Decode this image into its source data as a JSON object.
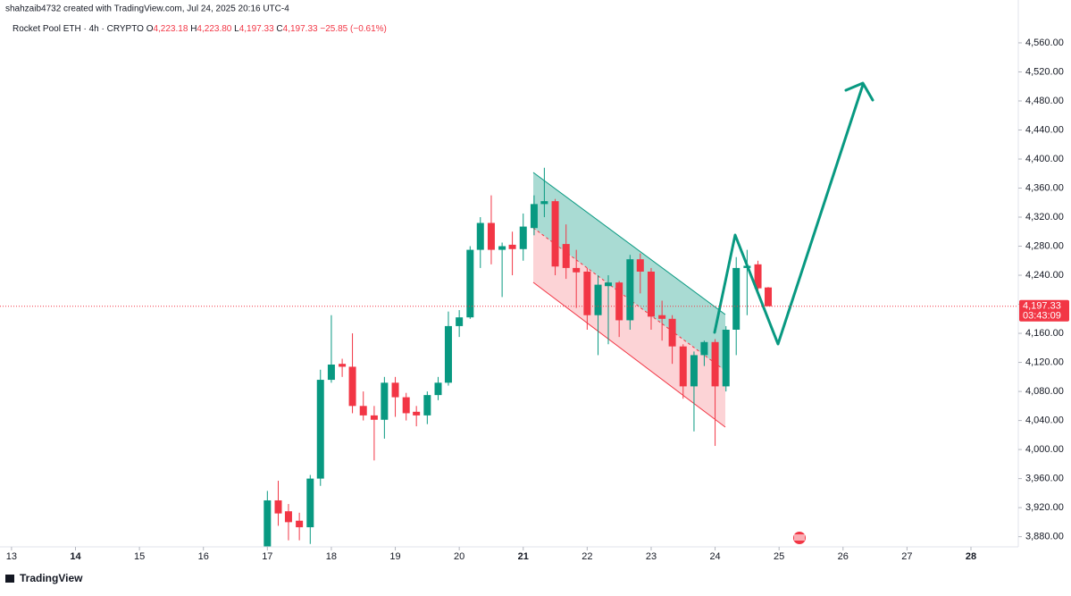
{
  "header": {
    "byline": "shahzaib4732 created with TradingView.com, Jul 24, 2025 20:16 UTC-4",
    "symbol": "Rocket Pool ETH · 4h · CRYPTO",
    "ohlc_legend": [
      {
        "key": "O",
        "label": "4,223.18"
      },
      {
        "key": "H",
        "label": "4,223.80"
      },
      {
        "key": "L",
        "label": "4,197.33"
      },
      {
        "key": "C",
        "label": "4,197.33"
      }
    ],
    "change": "−25.85 (−0.61%)"
  },
  "footer": {
    "brand": "TradingView"
  },
  "chart_data": {
    "type": "candlestick",
    "up_color": "#089981",
    "down_color": "#f23645",
    "xlim": [
      12.82,
      28.74
    ],
    "xticks": [
      13,
      14,
      15,
      16,
      17,
      18,
      19,
      20,
      21,
      22,
      23,
      24,
      25,
      26,
      27,
      28
    ],
    "ylim": [
      3866,
      4619
    ],
    "yticks": [
      {
        "value": 3880,
        "label": "3,880.00"
      },
      {
        "value": 3920,
        "label": "3,920.00"
      },
      {
        "value": 3960,
        "label": "3,960.00"
      },
      {
        "value": 4000,
        "label": "4,000.00"
      },
      {
        "value": 4040,
        "label": "4,040.00"
      },
      {
        "value": 4080,
        "label": "4,080.00"
      },
      {
        "value": 4120,
        "label": "4,120.00"
      },
      {
        "value": 4160,
        "label": "4,160.00"
      },
      {
        "value": 4200,
        "label": "4,200.00"
      },
      {
        "value": 4240,
        "label": "4,240.00"
      },
      {
        "value": 4280,
        "label": "4,280.00"
      },
      {
        "value": 4320,
        "label": "4,320.00"
      },
      {
        "value": 4360,
        "label": "4,360.00"
      },
      {
        "value": 4400,
        "label": "4,400.00"
      },
      {
        "value": 4440,
        "label": "4,440.00"
      },
      {
        "value": 4480,
        "label": "4,480.00"
      },
      {
        "value": 4520,
        "label": "4,520.00"
      },
      {
        "value": 4560,
        "label": "4,560.00"
      }
    ],
    "last_price": {
      "value": 4197.33,
      "label": "4,197.33"
    },
    "countdown": "03:43:09",
    "series": {
      "x": [
        17.0,
        17.17,
        17.33,
        17.5,
        17.67,
        17.83,
        18.0,
        18.17,
        18.33,
        18.5,
        18.67,
        18.83,
        19.0,
        19.17,
        19.33,
        19.5,
        19.67,
        19.83,
        20.0,
        20.17,
        20.33,
        20.5,
        20.67,
        20.83,
        21.0,
        21.17,
        21.33,
        21.5,
        21.67,
        21.83,
        22.0,
        22.17,
        22.33,
        22.5,
        22.67,
        22.83,
        23.0,
        23.17,
        23.33,
        23.5,
        23.67,
        23.83,
        24.0,
        24.17,
        24.33,
        24.5,
        24.67,
        24.83
      ],
      "open": [
        3866,
        3930,
        3915,
        3902,
        3893,
        3960,
        4096,
        4118,
        4114,
        4060,
        4047,
        4041,
        4092,
        4072,
        4052,
        4047,
        4075,
        4092,
        4170,
        4182,
        4275,
        4312,
        4275,
        4282,
        4276,
        4305,
        4338,
        4342,
        4283,
        4250,
        4245,
        4185,
        4225,
        4230,
        4178,
        4262,
        4245,
        4185,
        4180,
        4142,
        4087,
        4130,
        4148,
        4087,
        4165,
        4250,
        4255,
        4223.18
      ],
      "high": [
        3943,
        3957,
        3925,
        3913,
        3965,
        4110,
        4185,
        4125,
        4160,
        4080,
        4060,
        4100,
        4100,
        4078,
        4060,
        4080,
        4100,
        4190,
        4192,
        4280,
        4320,
        4350,
        4285,
        4300,
        4325,
        4350,
        4388,
        4345,
        4310,
        4275,
        4250,
        4240,
        4240,
        4232,
        4268,
        4270,
        4250,
        4205,
        4185,
        4145,
        4135,
        4150,
        4152,
        4170,
        4265,
        4275,
        4260,
        4223.8
      ],
      "low": [
        3860,
        3895,
        3875,
        3875,
        3870,
        3950,
        4092,
        4100,
        4050,
        4040,
        3985,
        4015,
        4045,
        4040,
        4032,
        4035,
        4068,
        4088,
        4155,
        4180,
        4250,
        4255,
        4210,
        4240,
        4260,
        4295,
        4320,
        4240,
        4235,
        4195,
        4165,
        4130,
        4145,
        4155,
        4165,
        4215,
        4165,
        4150,
        4118,
        4070,
        4025,
        4115,
        4005,
        4080,
        4130,
        4185,
        4212,
        4197.33
      ],
      "close": [
        3930,
        3912,
        3900,
        3893,
        3960,
        4096,
        4117,
        4114,
        4060,
        4047,
        4041,
        4092,
        4072,
        4050,
        4047,
        4075,
        4092,
        4170,
        4182,
        4275,
        4312,
        4275,
        4280,
        4276,
        4307,
        4338,
        4342,
        4252,
        4250,
        4244,
        4185,
        4227,
        4230,
        4178,
        4262,
        4245,
        4183,
        4180,
        4142,
        4087,
        4130,
        4148,
        4087,
        4165,
        4250,
        4253,
        4222,
        4197.33
      ]
    }
  }
}
